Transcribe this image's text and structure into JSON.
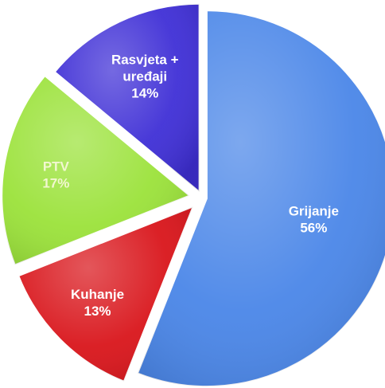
{
  "chart_data": {
    "type": "pie",
    "title": "",
    "slices": [
      {
        "label_lines": [
          "Grijanje"
        ],
        "value": 56,
        "value_label": "56%",
        "color": "#4a86e8",
        "label_color": "#ffffff"
      },
      {
        "label_lines": [
          "Kuhanje"
        ],
        "value": 13,
        "value_label": "13%",
        "color": "#d9151b",
        "label_color": "#ffffff"
      },
      {
        "label_lines": [
          "PTV"
        ],
        "value": 17,
        "value_label": "17%",
        "color": "#9be23a",
        "label_color": "#f2f7d0"
      },
      {
        "label_lines": [
          "Rasvjeta +",
          "uređaji"
        ],
        "value": 14,
        "value_label": "14%",
        "color": "#3f2fd6",
        "label_color": "#ffffff"
      }
    ]
  }
}
